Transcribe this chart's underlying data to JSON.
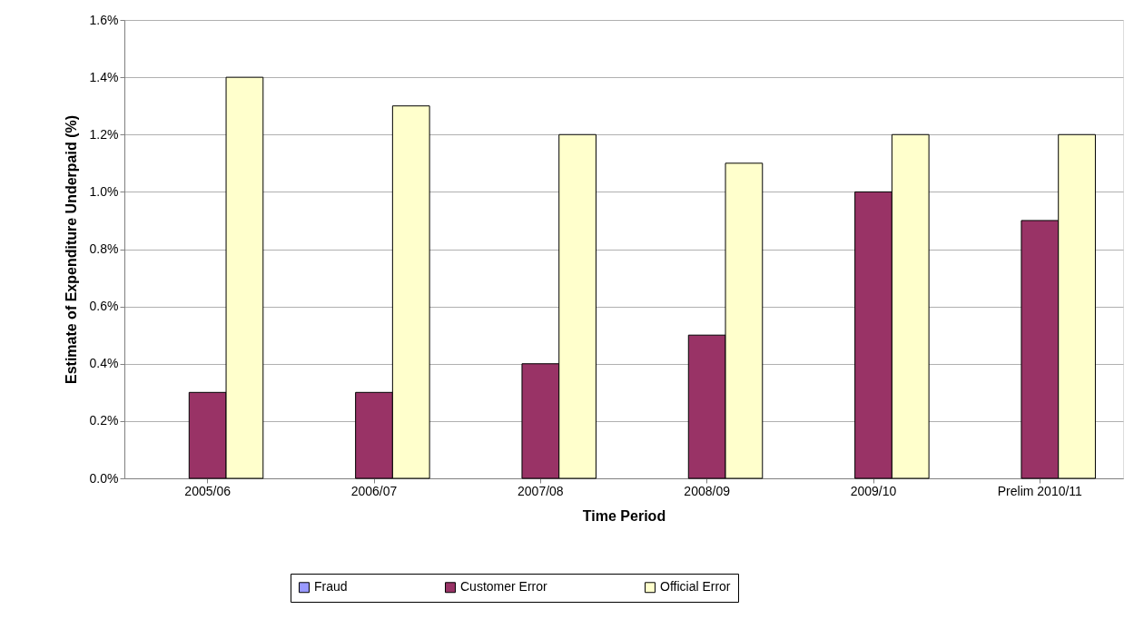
{
  "chart_data": {
    "type": "bar",
    "xlabel": "Time Period",
    "ylabel": "Estimate of Expenditure Underpaid (%)",
    "categories": [
      "2005/06",
      "2006/07",
      "2007/08",
      "2008/09",
      "2009/10",
      "Prelim 2010/11"
    ],
    "series": [
      {
        "name": "Fraud",
        "color": "#9999ff",
        "values": [
          0,
          0,
          0,
          0,
          0,
          0
        ]
      },
      {
        "name": "Customer Error",
        "color": "#993366",
        "values": [
          0.3,
          0.3,
          0.4,
          0.5,
          1.0,
          0.9
        ]
      },
      {
        "name": "Official Error",
        "color": "#ffffcc",
        "values": [
          1.4,
          1.3,
          1.2,
          1.1,
          1.2,
          1.2
        ]
      }
    ],
    "ylim": [
      0,
      1.6
    ],
    "yticks": [
      {
        "value": 0,
        "label": "0.0%"
      },
      {
        "value": 0.2,
        "label": "0.2%"
      },
      {
        "value": 0.4,
        "label": "0.4%"
      },
      {
        "value": 0.6,
        "label": "0.6%"
      },
      {
        "value": 0.8,
        "label": "0.8%"
      },
      {
        "value": 1.0,
        "label": "1.0%"
      },
      {
        "value": 1.2,
        "label": "1.2%"
      },
      {
        "value": 1.4,
        "label": "1.4%"
      },
      {
        "value": 1.6,
        "label": "1.6%"
      }
    ],
    "grid": "y",
    "legend": "bottom"
  }
}
